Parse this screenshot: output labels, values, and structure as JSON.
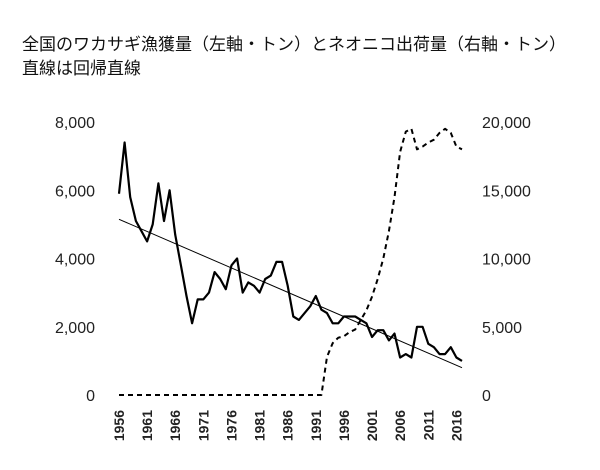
{
  "title_line1": "全国のワカサギ漁獲量（左軸・トン）とネオニコ出荷量（右軸・トン）",
  "title_line2": "直線は回帰直線",
  "chart_data": {
    "type": "line",
    "x": [
      1956,
      1957,
      1958,
      1959,
      1960,
      1961,
      1962,
      1963,
      1964,
      1965,
      1966,
      1967,
      1968,
      1969,
      1970,
      1971,
      1972,
      1973,
      1974,
      1975,
      1976,
      1977,
      1978,
      1979,
      1980,
      1981,
      1982,
      1983,
      1984,
      1985,
      1986,
      1987,
      1988,
      1989,
      1990,
      1991,
      1992,
      1993,
      1994,
      1995,
      1996,
      1997,
      1998,
      1999,
      2000,
      2001,
      2002,
      2003,
      2004,
      2005,
      2006,
      2007,
      2008,
      2009,
      2010,
      2011,
      2012,
      2013,
      2014,
      2015,
      2016,
      2017
    ],
    "series": [
      {
        "axis": "left",
        "style": "solid",
        "values": [
          5900,
          7400,
          5800,
          5100,
          4800,
          4500,
          5000,
          6200,
          5100,
          6000,
          4700,
          3800,
          2900,
          2100,
          2800,
          2800,
          3000,
          3600,
          3400,
          3100,
          3800,
          4000,
          3000,
          3300,
          3200,
          3000,
          3400,
          3500,
          3900,
          3900,
          3200,
          2300,
          2200,
          2400,
          2600,
          2900,
          2500,
          2400,
          2100,
          2100,
          2300,
          2300,
          2300,
          2200,
          2100,
          1700,
          1900,
          1900,
          1600,
          1800,
          1100,
          1200,
          1100,
          2000,
          2000,
          1500,
          1400,
          1200,
          1200,
          1400,
          1100,
          1000
        ]
      },
      {
        "axis": "right",
        "style": "dashed",
        "values": [
          0,
          0,
          0,
          0,
          0,
          0,
          0,
          0,
          0,
          0,
          0,
          0,
          0,
          0,
          0,
          0,
          0,
          0,
          0,
          0,
          0,
          0,
          0,
          0,
          0,
          0,
          0,
          0,
          0,
          0,
          0,
          0,
          0,
          0,
          0,
          0,
          0,
          2800,
          3800,
          4200,
          4300,
          4600,
          4800,
          5500,
          6200,
          7200,
          8500,
          10000,
          12000,
          14500,
          17800,
          19300,
          19500,
          18000,
          18200,
          18500,
          18700,
          19200,
          19500,
          19200,
          18200,
          18000
        ]
      },
      {
        "axis": "left",
        "style": "regression",
        "x": [
          1956,
          2017
        ],
        "values": [
          5150,
          800
        ]
      }
    ],
    "left_ticks": [
      "8,000",
      "6,000",
      "4,000",
      "2,000",
      "0"
    ],
    "right_ticks": [
      "20,000",
      "15,000",
      "10,000",
      "5,000",
      "0"
    ],
    "x_ticks": [
      "1956",
      "1961",
      "1966",
      "1971",
      "1976",
      "1981",
      "1986",
      "1991",
      "1996",
      "2001",
      "2006",
      "2011",
      "2016"
    ],
    "left_ylim": [
      0,
      8000
    ],
    "right_ylim": [
      0,
      20000
    ],
    "grid": false,
    "legend": "none"
  }
}
